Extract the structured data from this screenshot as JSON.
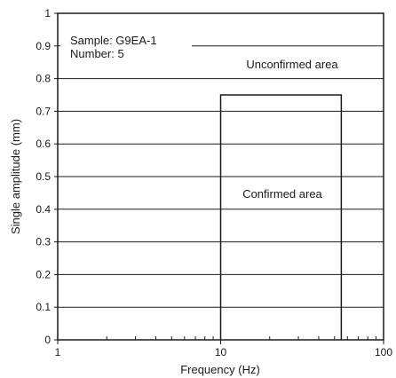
{
  "chart_data": {
    "type": "line",
    "xlabel": "Frequency (Hz)",
    "ylabel": "Single amplitude (mm)",
    "xscale": "log",
    "xlim": [
      1,
      100
    ],
    "ylim": [
      0,
      1
    ],
    "xticks": [
      1,
      10,
      100
    ],
    "xtick_labels": [
      "1",
      "10",
      "100"
    ],
    "yticks": [
      0,
      0.1,
      0.2,
      0.3,
      0.4,
      0.5,
      0.6,
      0.7,
      0.8,
      0.9,
      1
    ],
    "ytick_labels": [
      "0",
      "0.1",
      "0.2",
      "0.3",
      "0.4",
      "0.5",
      "0.6",
      "0.7",
      "0.8",
      "0.9",
      "1"
    ],
    "grid": "horizontal",
    "series": [
      {
        "x": [
          10,
          10,
          55,
          55
        ],
        "y": [
          0,
          0.75,
          0.75,
          0
        ]
      }
    ],
    "annotations": {
      "sample": "Sample: G9EA-1",
      "number": "Number: 5",
      "unconfirmed": "Unconfirmed area",
      "confirmed": "Confirmed area"
    }
  }
}
